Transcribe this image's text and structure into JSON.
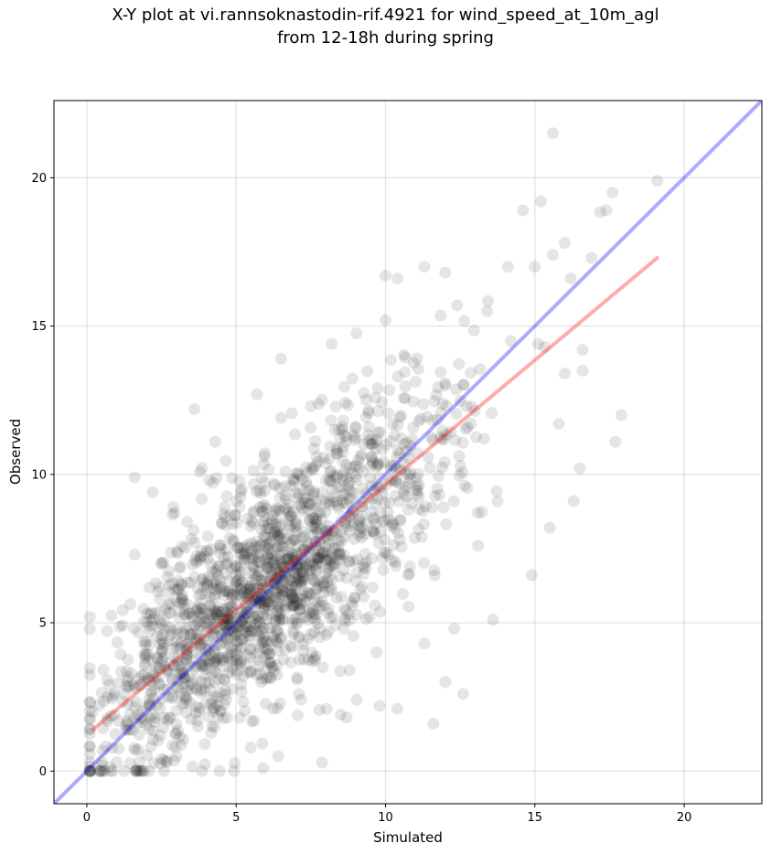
{
  "chart_data": {
    "type": "scatter",
    "title_line1": "X-Y plot at vi.rannsoknastodin-rif.4921 for wind_speed_at_10m_agl",
    "title_line2": "from 12-18h during spring",
    "xlabel": "Simulated",
    "ylabel": "Observed",
    "xlim": [
      -1.1,
      22.6
    ],
    "ylim": [
      -1.1,
      22.6
    ],
    "xticks": [
      0,
      5,
      10,
      15,
      20
    ],
    "yticks": [
      0,
      5,
      10,
      15,
      20
    ],
    "grid": true,
    "point_color": "#000000",
    "point_opacity": 0.1,
    "identity_line": {
      "color": "#0000ff",
      "opacity": 0.33,
      "x": [
        -1.1,
        22.6
      ],
      "y": [
        -1.1,
        22.6
      ]
    },
    "fit_line": {
      "color": "#ff0000",
      "opacity": 0.33,
      "x": [
        0.2,
        19.1
      ],
      "y": [
        1.4,
        17.3
      ]
    },
    "cloud": {
      "n": 1750,
      "x_mean": 6.5,
      "x_std": 3.4,
      "x_min": 0.1,
      "x_max": 19.2,
      "slope": 0.84,
      "intercept": 1.2,
      "resid_std": 1.9,
      "y_min": 0.0,
      "y_max": 21.5,
      "seed": 4921
    },
    "points": [
      [
        0.5,
        0.3
      ],
      [
        1.0,
        0.3
      ],
      [
        1.7,
        0.0
      ],
      [
        3.0,
        0.5
      ],
      [
        0.2,
        2.0
      ],
      [
        1.6,
        9.9
      ],
      [
        3.6,
        12.2
      ],
      [
        5.7,
        12.7
      ],
      [
        6.5,
        13.9
      ],
      [
        6.4,
        0.5
      ],
      [
        5.9,
        0.1
      ],
      [
        9.8,
        2.2
      ],
      [
        10.4,
        2.1
      ],
      [
        11.6,
        1.6
      ],
      [
        12.0,
        3.0
      ],
      [
        12.6,
        2.6
      ],
      [
        15.6,
        21.5
      ],
      [
        14.2,
        14.5
      ],
      [
        15.2,
        19.2
      ],
      [
        17.6,
        19.5
      ],
      [
        17.4,
        18.9
      ],
      [
        19.1,
        19.9
      ],
      [
        17.9,
        12.0
      ],
      [
        17.7,
        11.1
      ],
      [
        16.5,
        10.2
      ],
      [
        16.3,
        9.1
      ],
      [
        15.5,
        8.2
      ],
      [
        15.8,
        11.7
      ],
      [
        16.6,
        13.5
      ],
      [
        16.0,
        13.4
      ],
      [
        14.9,
        6.6
      ],
      [
        13.6,
        5.1
      ],
      [
        10.4,
        16.6
      ],
      [
        11.3,
        17.0
      ],
      [
        8.2,
        14.4
      ],
      [
        14.1,
        17.0
      ],
      [
        15.0,
        17.0
      ],
      [
        16.0,
        17.8
      ],
      [
        16.9,
        17.3
      ],
      [
        16.6,
        14.2
      ],
      [
        13.4,
        15.5
      ],
      [
        12.0,
        16.8
      ],
      [
        10.0,
        15.2
      ],
      [
        7.5,
        12.3
      ],
      [
        4.3,
        11.1
      ],
      [
        4.1,
        9.8
      ],
      [
        2.2,
        9.4
      ],
      [
        2.9,
        8.9
      ],
      [
        1.6,
        7.3
      ],
      [
        2.5,
        7.0
      ],
      [
        10.0,
        16.7
      ],
      [
        12.4,
        15.7
      ],
      [
        14.6,
        18.9
      ],
      [
        15.6,
        17.4
      ],
      [
        16.2,
        16.6
      ],
      [
        13.1,
        7.6
      ],
      [
        12.3,
        4.8
      ],
      [
        11.3,
        4.3
      ],
      [
        9.7,
        4.0
      ],
      [
        8.8,
        3.4
      ],
      [
        8.5,
        1.9
      ],
      [
        8.7,
        1.8
      ],
      [
        7.9,
        3.5
      ],
      [
        7.1,
        2.6
      ],
      [
        5.6,
        1.7
      ]
    ]
  }
}
